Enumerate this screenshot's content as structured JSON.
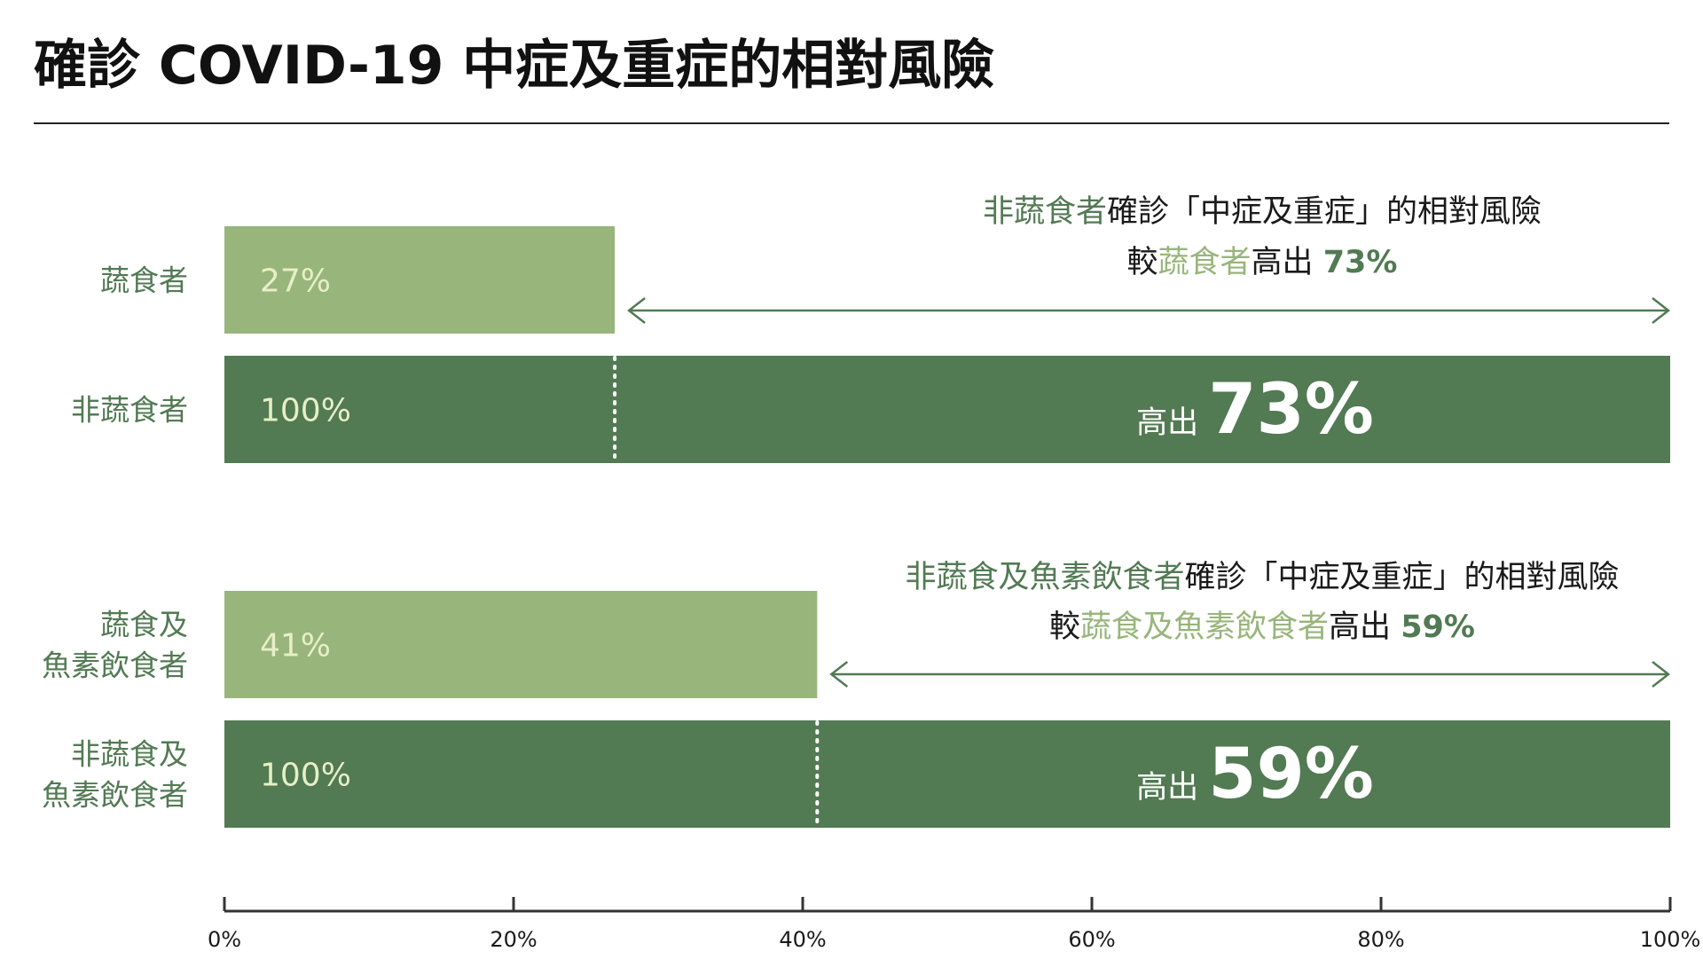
{
  "chart_data": {
    "type": "bar",
    "title": "確診 COVID-19 中症及重症的相對風險",
    "orientation": "horizontal",
    "xlim": [
      0,
      100
    ],
    "x_ticks": [
      "0%",
      "20%",
      "40%",
      "60%",
      "80%",
      "100%"
    ],
    "grid": false,
    "groups": [
      {
        "bars": [
          {
            "label": [
              "蔬食者"
            ],
            "value": 27,
            "value_label": "27%",
            "style": "light"
          },
          {
            "label": [
              "非蔬食者"
            ],
            "value": 100,
            "value_label": "100%",
            "style": "dark"
          }
        ],
        "annotation": {
          "line1": [
            {
              "text": "非蔬食者",
              "style": "dark"
            },
            {
              "text": "確診「中症及重症」的相對風險",
              "style": "plain"
            }
          ],
          "line2": [
            {
              "text": "較",
              "style": "plain"
            },
            {
              "text": "蔬食者",
              "style": "light"
            },
            {
              "text": "高出 ",
              "style": "plain"
            },
            {
              "text": "73%",
              "style": "dark-bold"
            }
          ]
        },
        "highlight_prefix": "高出",
        "highlight_value": "73%"
      },
      {
        "bars": [
          {
            "label": [
              "蔬食及",
              "魚素飲食者"
            ],
            "value": 41,
            "value_label": "41%",
            "style": "light"
          },
          {
            "label": [
              "非蔬食及",
              "魚素飲食者"
            ],
            "value": 100,
            "value_label": "100%",
            "style": "dark"
          }
        ],
        "annotation": {
          "line1": [
            {
              "text": "非蔬食及魚素飲食者",
              "style": "dark"
            },
            {
              "text": "確診「中症及重症」的相對風險",
              "style": "plain"
            }
          ],
          "line2": [
            {
              "text": "較",
              "style": "plain"
            },
            {
              "text": "蔬食及魚素飲食者",
              "style": "light"
            },
            {
              "text": "高出 ",
              "style": "plain"
            },
            {
              "text": "59%",
              "style": "dark-bold"
            }
          ]
        },
        "highlight_prefix": "高出",
        "highlight_value": "59%"
      }
    ]
  },
  "colors": {
    "light_bar": "#98b57b",
    "dark_bar": "#527a53",
    "label_green": "#527a53",
    "light_text": "#98b57b",
    "value_text": "#e6efc7",
    "text_dark": "#1a1a1a",
    "axis": "#333333"
  }
}
